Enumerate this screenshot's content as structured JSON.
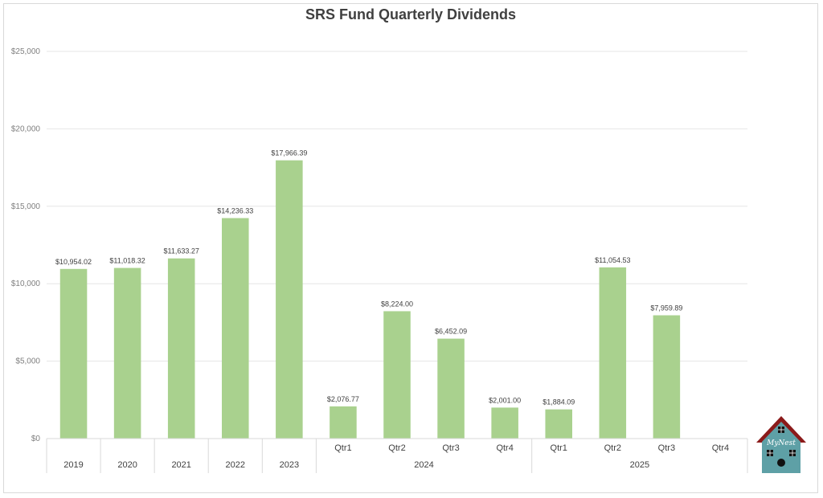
{
  "chart_data": {
    "type": "bar",
    "title": "SRS Fund Quarterly Dividends",
    "xlabel": "",
    "ylabel": "",
    "ylim": [
      0,
      25000
    ],
    "yticks": [
      0,
      5000,
      10000,
      15000,
      20000,
      25000
    ],
    "ytick_labels": [
      "$0",
      "$5,000",
      "$10,000",
      "$15,000",
      "$20,000",
      "$25,000"
    ],
    "grid": true,
    "legend": "none",
    "bar_color": "#a9d18e",
    "categories": [
      "2019",
      "2020",
      "2021",
      "2022",
      "2023",
      "Qtr1",
      "Qtr2",
      "Qtr3",
      "Qtr4",
      "Qtr1",
      "Qtr2",
      "Qtr3",
      "Qtr4"
    ],
    "values": [
      10954.02,
      11018.32,
      11633.27,
      14236.33,
      17966.39,
      2076.77,
      8224.0,
      6452.09,
      2001.0,
      1884.09,
      11054.53,
      7959.89,
      null
    ],
    "data_labels": [
      "$10,954.02",
      "$11,018.32",
      "$11,633.27",
      "$14,236.33",
      "$17,966.39",
      "$2,076.77",
      "$8,224.00",
      "$6,452.09",
      "$2,001.00",
      "$1,884.09",
      "$11,054.53",
      "$7,959.89",
      ""
    ],
    "groups": [
      {
        "label": "2024",
        "start": 5,
        "end": 8
      },
      {
        "label": "2025",
        "start": 9,
        "end": 12
      }
    ]
  },
  "logo": {
    "text": "MyNest",
    "name": "mynest-birdhouse-logo"
  }
}
